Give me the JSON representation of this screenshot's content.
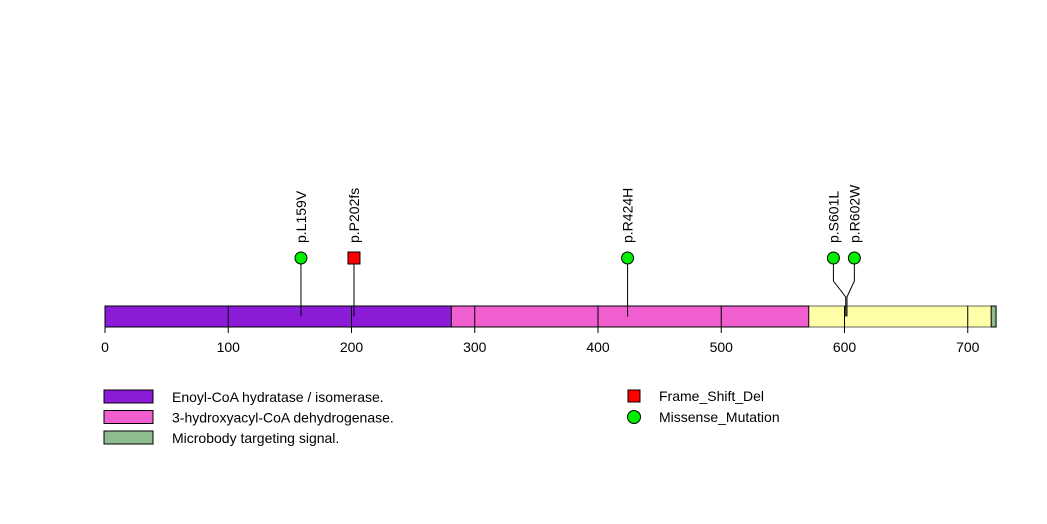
{
  "chart_data": {
    "type": "lollipop",
    "protein_length": 723,
    "xlim": [
      0,
      723
    ],
    "x_ticks": [
      0,
      100,
      200,
      300,
      400,
      500,
      600,
      700
    ],
    "domains": [
      {
        "name": "Enoyl-CoA hydratase / isomerase.",
        "start": 1,
        "end": 282,
        "color": "#8B1BD6"
      },
      {
        "name": "3-hydroxyacyl-CoA dehydrogenase.",
        "start": 282,
        "end": 571,
        "color": "#F05ED0"
      },
      {
        "name": "Microbody targeting signal.",
        "start": 720,
        "end": 723,
        "color": "#8FBC8F"
      }
    ],
    "region_fill": {
      "start": 571,
      "end": 720,
      "color": "#FFFFA8"
    },
    "mutations": [
      {
        "label": "p.L159V",
        "position": 159,
        "type": "Missense_Mutation",
        "display_position": 159
      },
      {
        "label": "p.P202fs",
        "position": 202,
        "type": "Frame_Shift_Del",
        "display_position": 202
      },
      {
        "label": "p.R424H",
        "position": 424,
        "type": "Missense_Mutation",
        "display_position": 424
      },
      {
        "label": "p.S601L",
        "position": 601,
        "type": "Missense_Mutation",
        "display_position": 591
      },
      {
        "label": "p.R602W",
        "position": 602,
        "type": "Missense_Mutation",
        "display_position": 608
      }
    ],
    "mutation_types": [
      {
        "name": "Frame_Shift_Del",
        "shape": "square",
        "color": "#FF0000"
      },
      {
        "name": "Missense_Mutation",
        "shape": "circle",
        "color": "#00EE00"
      }
    ]
  }
}
